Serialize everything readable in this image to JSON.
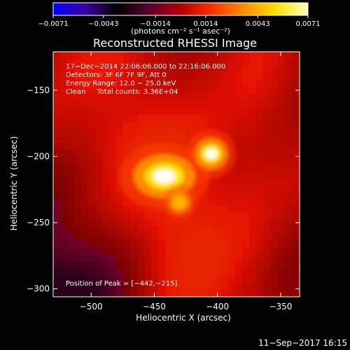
{
  "chart_data": {
    "type": "heatmap",
    "title": "Reconstructed RHESSI Image",
    "xlabel": "Heliocentric X (arcsec)",
    "ylabel": "Heliocentric Y (arcsec)",
    "xlim": [
      -530,
      -335
    ],
    "ylim": [
      -306,
      -121
    ],
    "x_ticks": [
      -500,
      -450,
      -400,
      -350
    ],
    "x_tick_labels": [
      "−500",
      "−450",
      "−400",
      "−350"
    ],
    "y_ticks": [
      -150,
      -200,
      -250,
      -300
    ],
    "y_tick_labels": [
      "−150",
      "−200",
      "−250",
      "−300"
    ],
    "colorbar": {
      "range": [
        -0.0071,
        0.0071
      ],
      "ticks": [
        -0.0071,
        -0.0043,
        -0.0014,
        0.0014,
        0.0043,
        0.0071
      ],
      "tick_labels": [
        "−0.0071",
        "−0.0043",
        "−0.0014",
        "0.0014",
        "0.0043",
        "0.0071"
      ],
      "unit_label": "(photons cm⁻² s⁻¹ asec⁻²)",
      "colors": [
        "#0000ff",
        "#3a00a0",
        "#000000",
        "#5a0030",
        "#b00000",
        "#ff3000",
        "#ff9000",
        "#ffe000",
        "#ffffc0"
      ]
    },
    "annotations": [
      "17−Dec−2014 22:06:06.000 to 22:16:06.000",
      "Detectors: 3F 6F 7F 9F, Att 0",
      "Energy Range: 12.0 − 25.0 keV",
      "Clean     Total counts: 3.36E+04"
    ],
    "peak_label": "Position of Peak = [−442,−215]",
    "peak": [
      -442,
      -215
    ],
    "sources": [
      {
        "x": -442,
        "y": -215,
        "intensity": 0.0071
      },
      {
        "x": -405,
        "y": -198,
        "intensity": 0.0066
      },
      {
        "x": -430,
        "y": -235,
        "intensity": 0.0043
      }
    ]
  },
  "timestamp": "11−Sep−2017 16:15"
}
